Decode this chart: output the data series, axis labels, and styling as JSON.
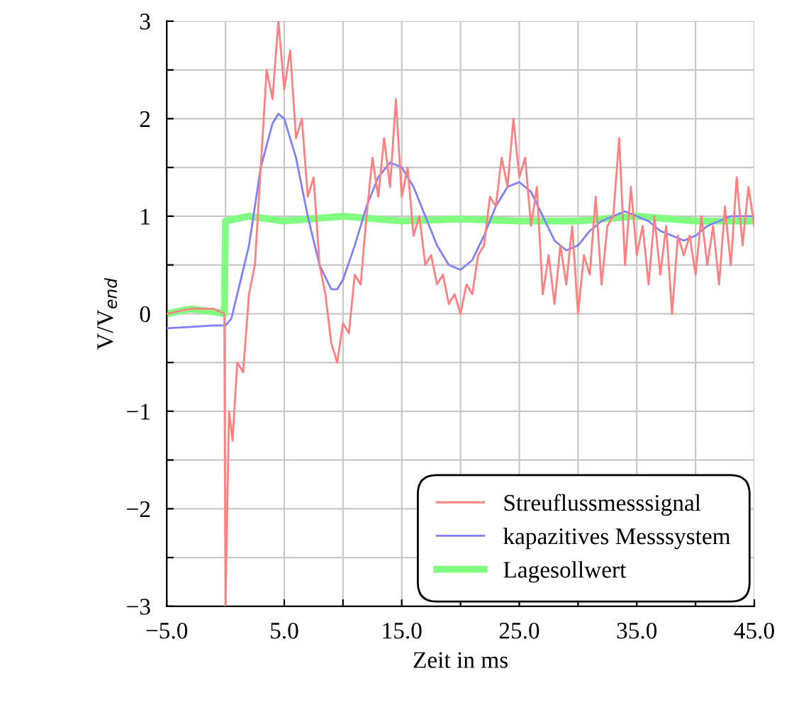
{
  "chart_data": {
    "type": "line",
    "xlabel": "Zeit in ms",
    "ylabel": "V/V$_{end}$",
    "xlim": [
      -5,
      45
    ],
    "ylim": [
      -3,
      3
    ],
    "xticks": [
      {
        "value": -5,
        "label": "−5.0"
      },
      {
        "value": 0,
        "label": null
      },
      {
        "value": 5,
        "label": "5.0"
      },
      {
        "value": 10,
        "label": null
      },
      {
        "value": 15,
        "label": "15.0"
      },
      {
        "value": 20,
        "label": null
      },
      {
        "value": 25,
        "label": "25.0"
      },
      {
        "value": 30,
        "label": null
      },
      {
        "value": 35,
        "label": "35.0"
      },
      {
        "value": 40,
        "label": null
      },
      {
        "value": 45,
        "label": "45.0"
      }
    ],
    "yticks": [
      {
        "value": -3,
        "label": "−3"
      },
      {
        "value": -2.5,
        "label": null
      },
      {
        "value": -2,
        "label": "−2"
      },
      {
        "value": -1.5,
        "label": null
      },
      {
        "value": -1,
        "label": "−1"
      },
      {
        "value": -0.5,
        "label": null
      },
      0,
      {
        "value": 0.5,
        "label": null
      },
      1,
      {
        "value": 1.5,
        "label": null
      },
      2,
      {
        "value": 2.5,
        "label": null
      },
      3
    ],
    "grid": true,
    "legend": "bottom right",
    "marker": "none",
    "line_style": "solid",
    "series": [
      {
        "name": "Streuflussmesssignal",
        "color": "#ff8080",
        "x": [
          -5,
          -3,
          -1,
          -0.1,
          0,
          0.3,
          0.6,
          1,
          1.5,
          2,
          2.5,
          3,
          3.5,
          4,
          4.5,
          5,
          5.5,
          6,
          6.5,
          7,
          7.5,
          8,
          8.5,
          9,
          9.5,
          10,
          10.5,
          11,
          11.5,
          12,
          12.5,
          13,
          13.5,
          14,
          14.5,
          15,
          15.5,
          16,
          16.5,
          17,
          17.5,
          18,
          18.5,
          19,
          19.5,
          20,
          20.5,
          21,
          21.5,
          22,
          22.5,
          23,
          23.5,
          24,
          24.5,
          25,
          25.5,
          26,
          26.5,
          27,
          27.5,
          28,
          28.5,
          29,
          29.5,
          30,
          30.5,
          31,
          31.5,
          32,
          32.5,
          33,
          33.5,
          34,
          34.5,
          35,
          35.5,
          36,
          36.5,
          37,
          37.5,
          38,
          38.5,
          39,
          39.5,
          40,
          40.5,
          41,
          41.5,
          42,
          42.5,
          43,
          43.5,
          44,
          44.5,
          45
        ],
        "values": [
          0.0,
          0.05,
          0.05,
          0.0,
          -3.0,
          -1.0,
          -1.3,
          -0.5,
          -0.6,
          0.2,
          0.5,
          1.5,
          2.5,
          2.2,
          3.0,
          2.3,
          2.7,
          1.8,
          2.0,
          1.2,
          1.4,
          0.5,
          0.2,
          -0.3,
          -0.5,
          -0.1,
          -0.2,
          0.4,
          0.3,
          1.0,
          1.6,
          1.2,
          1.8,
          1.3,
          2.2,
          1.2,
          1.5,
          0.8,
          1.0,
          0.5,
          0.6,
          0.3,
          0.4,
          0.1,
          0.2,
          0.0,
          0.3,
          0.2,
          0.6,
          0.7,
          1.2,
          1.1,
          1.6,
          1.3,
          2.0,
          1.4,
          1.6,
          0.9,
          1.3,
          0.2,
          0.6,
          0.1,
          0.7,
          0.3,
          0.9,
          0.0,
          0.6,
          0.4,
          1.2,
          0.3,
          0.9,
          1.0,
          1.8,
          0.5,
          1.3,
          0.6,
          0.9,
          0.3,
          1.0,
          0.4,
          0.9,
          0.0,
          0.8,
          0.6,
          0.8,
          0.4,
          1.0,
          0.5,
          0.9,
          0.3,
          1.1,
          0.5,
          1.4,
          0.7,
          1.3,
          0.9
        ]
      },
      {
        "name": "kapazitives Messsystem",
        "color": "#8080ff",
        "x": [
          -5,
          -1,
          0,
          0.5,
          1,
          2,
          3,
          4,
          4.5,
          5,
          6,
          7,
          8,
          9,
          9.5,
          10,
          11,
          12,
          13,
          14,
          15,
          16,
          17,
          18,
          19,
          20,
          21,
          22,
          23,
          24,
          25,
          26,
          27,
          28,
          29,
          30,
          31,
          32,
          33,
          34,
          35,
          36,
          37,
          38,
          39,
          40,
          41,
          42,
          43,
          44,
          45
        ],
        "values": [
          -0.15,
          -0.12,
          -0.12,
          -0.05,
          0.2,
          0.7,
          1.5,
          1.95,
          2.05,
          2.0,
          1.6,
          1.0,
          0.5,
          0.25,
          0.25,
          0.35,
          0.7,
          1.1,
          1.4,
          1.55,
          1.5,
          1.3,
          1.0,
          0.7,
          0.5,
          0.45,
          0.55,
          0.8,
          1.1,
          1.3,
          1.35,
          1.25,
          1.0,
          0.75,
          0.65,
          0.7,
          0.85,
          0.95,
          1.0,
          1.05,
          1.0,
          0.95,
          0.85,
          0.8,
          0.75,
          0.8,
          0.9,
          0.95,
          1.0,
          1.0,
          1.0
        ]
      },
      {
        "name": "Lagesollwert",
        "color": "#80ff80",
        "x": [
          -5,
          -3,
          -1,
          -0.1,
          0,
          2,
          5,
          10,
          15,
          20,
          25,
          30,
          35,
          40,
          45
        ],
        "values": [
          0.0,
          0.05,
          0.02,
          0.0,
          0.95,
          1.0,
          0.95,
          1.0,
          0.95,
          0.97,
          0.95,
          0.95,
          1.0,
          0.95,
          0.95
        ]
      }
    ]
  }
}
